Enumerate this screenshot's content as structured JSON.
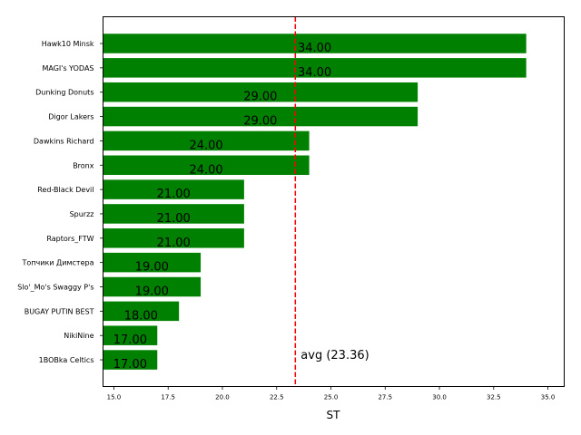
{
  "chart_data": {
    "type": "bar",
    "orientation": "horizontal",
    "categories": [
      "Hawk10 Minsk",
      "MAGI's YODAS",
      "Dunking Donuts",
      "Digor Lakers",
      "Dawkins Richard",
      "Bronx",
      "Red-Black Devil",
      "Spurzz",
      "Raptors_FTW",
      "Топчики Димстера",
      "Slo'_Mo's Swaggy P's",
      "BUGAY PUTIN BEST",
      "NikiNine",
      "1BOBka Celtics"
    ],
    "values": [
      34,
      34,
      29,
      29,
      24,
      24,
      21,
      21,
      21,
      19,
      19,
      18,
      17,
      17
    ],
    "value_labels": [
      "34.00",
      "34.00",
      "29.00",
      "29.00",
      "24.00",
      "24.00",
      "21.00",
      "21.00",
      "21.00",
      "19.00",
      "19.00",
      "18.00",
      "17.00",
      "17.00"
    ],
    "bar_color": "#008000",
    "title": "",
    "xlabel": "ST",
    "ylabel": "",
    "xlim": [
      14.5,
      35.75
    ],
    "xticks": [
      15.0,
      17.5,
      20.0,
      22.5,
      25.0,
      27.5,
      30.0,
      32.5,
      35.0
    ],
    "xtick_labels": [
      "15.0",
      "17.5",
      "20.0",
      "22.5",
      "25.0",
      "27.5",
      "30.0",
      "32.5",
      "35.0"
    ],
    "average": {
      "value": 23.36,
      "label": "avg (23.36)",
      "color": "#ff0000",
      "style": "dashed"
    },
    "grid": false,
    "legend": "none"
  }
}
